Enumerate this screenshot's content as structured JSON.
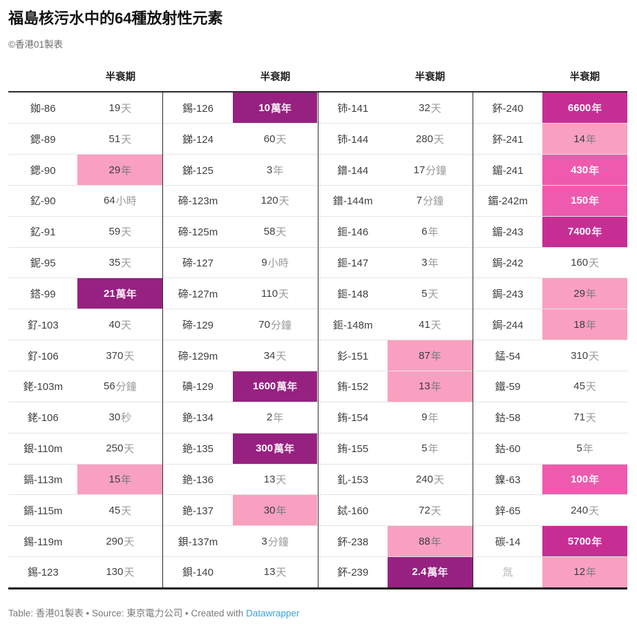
{
  "title": "福島核污水中的64種放射性元素",
  "byline": "©香港01製表",
  "footer": {
    "text": "Table: 香港01製表 • Source: 東京電力公司 • Created with ",
    "link": "Datawrapper"
  },
  "colors": {
    "pink": "#f9a0c0",
    "hot_pink": "#ee5bae",
    "magenta": "#c72e94",
    "purple": "#972181",
    "link_blue": "#38a3d5"
  },
  "chart_data": {
    "type": "table",
    "title": "福島核污水中的64種放射性元素",
    "value_column_header": "半衰期",
    "group_count": 4,
    "highlight_levels": [
      "",
      "pink",
      "hot",
      "mag",
      "pur"
    ],
    "groups": [
      [
        {
          "el": "銣-86",
          "v": "19",
          "u": "天",
          "lv": ""
        },
        {
          "el": "鍶-89",
          "v": "51",
          "u": "天",
          "lv": ""
        },
        {
          "el": "鍶-90",
          "v": "29",
          "u": "年",
          "lv": "pink"
        },
        {
          "el": "釔-90",
          "v": "64",
          "u": "小時",
          "lv": ""
        },
        {
          "el": "釔-91",
          "v": "59",
          "u": "天",
          "lv": ""
        },
        {
          "el": "鈮-95",
          "v": "35",
          "u": "天",
          "lv": ""
        },
        {
          "el": "鎝-99",
          "v": "21",
          "u": "萬年",
          "lv": "pur"
        },
        {
          "el": "釕-103",
          "v": "40",
          "u": "天",
          "lv": ""
        },
        {
          "el": "釕-106",
          "v": "370",
          "u": "天",
          "lv": ""
        },
        {
          "el": "銠-103m",
          "v": "56",
          "u": "分鐘",
          "lv": ""
        },
        {
          "el": "銠-106",
          "v": "30",
          "u": "秒",
          "lv": ""
        },
        {
          "el": "銀-110m",
          "v": "250",
          "u": "天",
          "lv": ""
        },
        {
          "el": "鎘-113m",
          "v": "15",
          "u": "年",
          "lv": "pink"
        },
        {
          "el": "鎘-115m",
          "v": "45",
          "u": "天",
          "lv": ""
        },
        {
          "el": "錫-119m",
          "v": "290",
          "u": "天",
          "lv": ""
        },
        {
          "el": "錫-123",
          "v": "130",
          "u": "天",
          "lv": ""
        }
      ],
      [
        {
          "el": "錫-126",
          "v": "10",
          "u": "萬年",
          "lv": "pur"
        },
        {
          "el": "銻-124",
          "v": "60",
          "u": "天",
          "lv": ""
        },
        {
          "el": "銻-125",
          "v": "3",
          "u": "年",
          "lv": ""
        },
        {
          "el": "碲-123m",
          "v": "120",
          "u": "天",
          "lv": ""
        },
        {
          "el": "碲-125m",
          "v": "58",
          "u": "天",
          "lv": ""
        },
        {
          "el": "碲-127",
          "v": "9",
          "u": "小時",
          "lv": ""
        },
        {
          "el": "碲-127m",
          "v": "110",
          "u": "天",
          "lv": ""
        },
        {
          "el": "碲-129",
          "v": "70",
          "u": "分鐘",
          "lv": ""
        },
        {
          "el": "碲-129m",
          "v": "34",
          "u": "天",
          "lv": ""
        },
        {
          "el": "碘-129",
          "v": "1600",
          "u": "萬年",
          "lv": "pur"
        },
        {
          "el": "銫-134",
          "v": "2",
          "u": "年",
          "lv": ""
        },
        {
          "el": "銫-135",
          "v": "300",
          "u": "萬年",
          "lv": "pur"
        },
        {
          "el": "銫-136",
          "v": "13",
          "u": "天",
          "lv": ""
        },
        {
          "el": "銫-137",
          "v": "30",
          "u": "年",
          "lv": "pink"
        },
        {
          "el": "鋇-137m",
          "v": "3",
          "u": "分鐘",
          "lv": ""
        },
        {
          "el": "鋇-140",
          "v": "13",
          "u": "天",
          "lv": ""
        }
      ],
      [
        {
          "el": "铈-141",
          "v": "32",
          "u": "天",
          "lv": ""
        },
        {
          "el": "铈-144",
          "v": "280",
          "u": "天",
          "lv": ""
        },
        {
          "el": "鐠-144",
          "v": "17",
          "u": "分鐘",
          "lv": ""
        },
        {
          "el": "鐠-144m",
          "v": "7",
          "u": "分鐘",
          "lv": ""
        },
        {
          "el": "鉕-146",
          "v": "6",
          "u": "年",
          "lv": ""
        },
        {
          "el": "鉕-147",
          "v": "3",
          "u": "年",
          "lv": ""
        },
        {
          "el": "鉕-148",
          "v": "5",
          "u": "天",
          "lv": ""
        },
        {
          "el": "鉕-148m",
          "v": "41",
          "u": "天",
          "lv": ""
        },
        {
          "el": "釤-151",
          "v": "87",
          "u": "年",
          "lv": "pink"
        },
        {
          "el": "銪-152",
          "v": "13",
          "u": "年",
          "lv": "pink"
        },
        {
          "el": "銪-154",
          "v": "9",
          "u": "年",
          "lv": ""
        },
        {
          "el": "銪-155",
          "v": "5",
          "u": "年",
          "lv": ""
        },
        {
          "el": "釓-153",
          "v": "240",
          "u": "天",
          "lv": ""
        },
        {
          "el": "鋱-160",
          "v": "72",
          "u": "天",
          "lv": ""
        },
        {
          "el": "鈈-238",
          "v": "88",
          "u": "年",
          "lv": "pink"
        },
        {
          "el": "鈈-239",
          "v": "2.4",
          "u": "萬年",
          "lv": "pur"
        }
      ],
      [
        {
          "el": "鈈-240",
          "v": "6600",
          "u": "年",
          "lv": "mag"
        },
        {
          "el": "鈈-241",
          "v": "14",
          "u": "年",
          "lv": "pink"
        },
        {
          "el": "鎇-241",
          "v": "430",
          "u": "年",
          "lv": "hot"
        },
        {
          "el": "鎇-242m",
          "v": "150",
          "u": "年",
          "lv": "hot"
        },
        {
          "el": "鎇-243",
          "v": "7400",
          "u": "年",
          "lv": "mag"
        },
        {
          "el": "鋦-242",
          "v": "160",
          "u": "天",
          "lv": ""
        },
        {
          "el": "鋦-243",
          "v": "29",
          "u": "年",
          "lv": "pink"
        },
        {
          "el": "鋦-244",
          "v": "18",
          "u": "年",
          "lv": "pink"
        },
        {
          "el": "錳-54",
          "v": "310",
          "u": "天",
          "lv": ""
        },
        {
          "el": "鐵-59",
          "v": "45",
          "u": "天",
          "lv": ""
        },
        {
          "el": "鈷-58",
          "v": "71",
          "u": "天",
          "lv": ""
        },
        {
          "el": "鈷-60",
          "v": "5",
          "u": "年",
          "lv": ""
        },
        {
          "el": "鎳-63",
          "v": "100",
          "u": "年",
          "lv": "hot"
        },
        {
          "el": "鋅-65",
          "v": "240",
          "u": "天",
          "lv": ""
        },
        {
          "el": "碳-14",
          "v": "5700",
          "u": "年",
          "lv": "mag"
        },
        {
          "el": "氚",
          "v": "12",
          "u": "年",
          "lv": "pink",
          "dim": true
        }
      ]
    ]
  }
}
